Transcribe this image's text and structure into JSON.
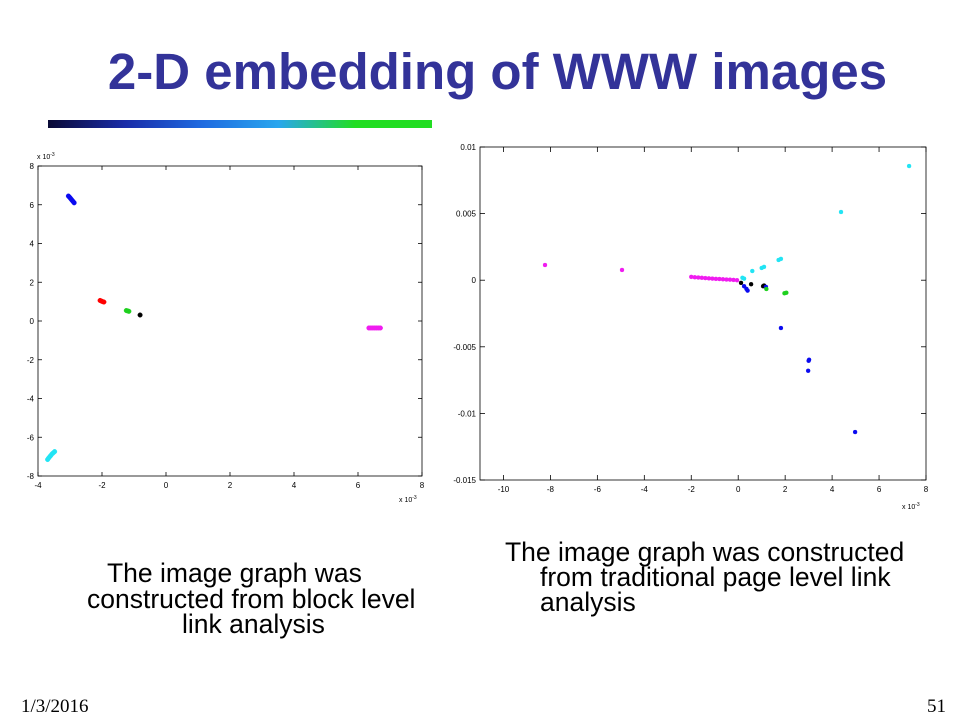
{
  "slide": {
    "title": "2-D embedding of WWW images",
    "title_color": "#333399",
    "accent_bar_colors": [
      "#0a0a36",
      "#1a2ca8",
      "#1f6ae0",
      "#29a6ee",
      "#22dd22",
      "#22dd22"
    ],
    "footer_date": "1/3/2016",
    "page_number": "51"
  },
  "captions": {
    "left": [
      "The image graph was",
      "constructed from block level",
      "link analysis"
    ],
    "right": [
      "The image graph was constructed",
      "from traditional page level link",
      "analysis"
    ]
  },
  "chart_data": [
    {
      "type": "scatter",
      "xlim": [
        -4,
        8
      ],
      "ylim": [
        -8,
        8
      ],
      "xticks": [
        -4,
        -2,
        0,
        2,
        4,
        6,
        8
      ],
      "yticks": [
        8,
        6,
        4,
        2,
        0,
        -2,
        -4,
        -6,
        -8
      ],
      "x_exponent_label": {
        "base": "x 10",
        "exponent": "-3"
      },
      "y_exponent_label": {
        "base": "x 10",
        "exponent": "-3"
      },
      "grid": false,
      "box": true,
      "series": [
        {
          "color": "#0a0af0",
          "points": [
            [
              -3.05,
              6.45
            ],
            [
              -3.02,
              6.4
            ],
            [
              -2.99,
              6.34
            ],
            [
              -2.96,
              6.28
            ],
            [
              -2.93,
              6.22
            ],
            [
              -2.9,
              6.16
            ],
            [
              -2.87,
              6.1
            ]
          ]
        },
        {
          "color": "#22e4f4",
          "points": [
            [
              -3.7,
              -7.15
            ],
            [
              -3.67,
              -7.08
            ],
            [
              -3.63,
              -7.0
            ],
            [
              -3.6,
              -6.94
            ],
            [
              -3.56,
              -6.86
            ],
            [
              -3.52,
              -6.8
            ],
            [
              -3.48,
              -6.74
            ]
          ]
        },
        {
          "color": "#ff0000",
          "points": [
            [
              -2.06,
              1.06
            ],
            [
              -2.02,
              1.03
            ],
            [
              -1.98,
              1.0
            ],
            [
              -1.94,
              0.98
            ]
          ]
        },
        {
          "color": "#1ed01e",
          "points": [
            [
              -1.24,
              0.54
            ],
            [
              -1.2,
              0.52
            ],
            [
              -1.16,
              0.5
            ]
          ]
        },
        {
          "color": "#000000",
          "points": [
            [
              -0.81,
              0.31
            ]
          ]
        },
        {
          "color": "#f01cf0",
          "points": [
            [
              6.34,
              -0.36
            ],
            [
              6.4,
              -0.36
            ],
            [
              6.46,
              -0.36
            ],
            [
              6.52,
              -0.36
            ],
            [
              6.58,
              -0.36
            ],
            [
              6.64,
              -0.36
            ],
            [
              6.7,
              -0.36
            ]
          ]
        }
      ]
    },
    {
      "type": "scatter",
      "xlim": [
        -11,
        8
      ],
      "ylim": [
        -0.015,
        0.01
      ],
      "xticks": [
        -10,
        -8,
        -6,
        -4,
        -2,
        0,
        2,
        4,
        6,
        8
      ],
      "yticks": [
        0.01,
        0.005,
        0,
        -0.005,
        -0.01,
        -0.015
      ],
      "x_exponent_label": {
        "base": "x 10",
        "exponent": "-3"
      },
      "grid": false,
      "box": true,
      "series": [
        {
          "color": "#f01cf0",
          "points": [
            [
              -8.23,
              0.00114
            ],
            [
              -4.95,
              0.00077
            ],
            [
              -2.0,
              0.00025
            ],
            [
              -1.85,
              0.00022
            ],
            [
              -1.7,
              0.0002
            ],
            [
              -1.55,
              0.00018
            ],
            [
              -1.4,
              0.00016
            ],
            [
              -1.25,
              0.00014
            ],
            [
              -1.1,
              0.00012
            ],
            [
              -0.95,
              0.0001
            ],
            [
              -0.8,
              9e-05
            ],
            [
              -0.65,
              7e-05
            ],
            [
              -0.5,
              5e-05
            ],
            [
              -0.35,
              4e-05
            ],
            [
              -0.2,
              2e-05
            ],
            [
              -0.05,
              0.0
            ]
          ]
        },
        {
          "color": "#22e4f4",
          "points": [
            [
              7.28,
              0.00857
            ],
            [
              4.38,
              0.00512
            ],
            [
              1.82,
              0.0016
            ],
            [
              1.72,
              0.00152
            ],
            [
              1.1,
              0.001
            ],
            [
              1.0,
              0.00092
            ],
            [
              0.6,
              0.00069
            ],
            [
              0.25,
              0.00012
            ],
            [
              0.18,
              0.00018
            ]
          ]
        },
        {
          "color": "#000000",
          "points": [
            [
              0.12,
              -0.0002
            ],
            [
              0.55,
              -0.0003
            ],
            [
              1.06,
              -0.00045
            ],
            [
              1.1,
              -0.0004
            ]
          ]
        },
        {
          "color": "#0a0af0",
          "points": [
            [
              0.25,
              -0.00045
            ],
            [
              0.35,
              -0.00065
            ],
            [
              0.4,
              -0.00078
            ],
            [
              1.18,
              -0.0005
            ],
            [
              1.82,
              -0.00359
            ],
            [
              3.02,
              -0.00597
            ],
            [
              3.0,
              -0.00605
            ],
            [
              2.98,
              -0.0068
            ],
            [
              4.98,
              -0.0114
            ]
          ]
        },
        {
          "color": "#1ed01e",
          "points": [
            [
              1.2,
              -0.00066
            ],
            [
              1.97,
              -0.00098
            ],
            [
              2.05,
              -0.00094
            ]
          ]
        }
      ]
    }
  ]
}
